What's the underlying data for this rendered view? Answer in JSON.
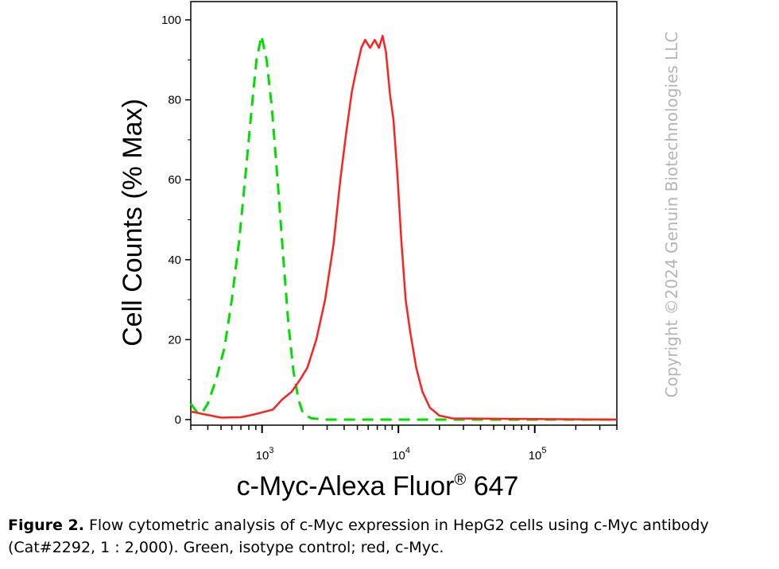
{
  "chart_data": {
    "type": "area",
    "x_scale": "log",
    "xlim": [
      300,
      400000
    ],
    "ylim": [
      0,
      100
    ],
    "y_ticks": [
      0,
      20,
      40,
      60,
      80,
      100
    ],
    "x_ticks": [
      {
        "base": "10",
        "exp": "3",
        "value": 1000
      },
      {
        "base": "10",
        "exp": "4",
        "value": 10000
      },
      {
        "base": "10",
        "exp": "5",
        "value": 100000
      }
    ],
    "ylabel": "Cell Counts (% Max)",
    "xlabel": "c-Myc-Alexa Fluor",
    "xlabel_sup": "®",
    "xlabel_tail": " 647",
    "grid": false,
    "series": [
      {
        "color": "#00dd00",
        "style": "dashed",
        "points": [
          [
            300,
            4
          ],
          [
            330,
            2
          ],
          [
            360,
            1.5
          ],
          [
            400,
            4
          ],
          [
            460,
            10
          ],
          [
            530,
            18
          ],
          [
            600,
            30
          ],
          [
            680,
            45
          ],
          [
            760,
            62
          ],
          [
            840,
            78
          ],
          [
            910,
            90
          ],
          [
            990,
            96
          ],
          [
            1080,
            90
          ],
          [
            1180,
            78
          ],
          [
            1300,
            60
          ],
          [
            1420,
            42
          ],
          [
            1560,
            24
          ],
          [
            1700,
            12
          ],
          [
            1850,
            5
          ],
          [
            2000,
            1.5
          ],
          [
            2300,
            0.3
          ],
          [
            3000,
            0
          ],
          [
            400000,
            0
          ]
        ]
      },
      {
        "color": "#ff2020",
        "style": "solid",
        "points": [
          [
            300,
            2
          ],
          [
            500,
            0.5
          ],
          [
            700,
            0.6
          ],
          [
            850,
            1.2
          ],
          [
            1000,
            1.8
          ],
          [
            1200,
            2.5
          ],
          [
            1400,
            5
          ],
          [
            1650,
            7
          ],
          [
            1900,
            10
          ],
          [
            2150,
            13
          ],
          [
            2500,
            20
          ],
          [
            2900,
            30
          ],
          [
            3350,
            44
          ],
          [
            3750,
            60
          ],
          [
            4150,
            72
          ],
          [
            4550,
            82
          ],
          [
            4950,
            88
          ],
          [
            5350,
            93
          ],
          [
            5700,
            95
          ],
          [
            6200,
            93
          ],
          [
            6700,
            95
          ],
          [
            7200,
            93
          ],
          [
            7650,
            96
          ],
          [
            8100,
            92
          ],
          [
            8700,
            81
          ],
          [
            9200,
            75
          ],
          [
            9800,
            62
          ],
          [
            10500,
            45
          ],
          [
            11300,
            30
          ],
          [
            12200,
            22
          ],
          [
            13500,
            13
          ],
          [
            15000,
            7
          ],
          [
            17000,
            3
          ],
          [
            20000,
            1
          ],
          [
            25000,
            0.3
          ],
          [
            400000,
            0
          ]
        ]
      }
    ]
  },
  "watermark": "Copyright ©2024 Genuin Biotechnologies LLC",
  "caption": {
    "lead": "Figure 2.",
    "text": " Flow cytometric analysis of c-Myc expression in HepG2 cells using c-Myc antibody (Cat#2292, 1 :   2,000). Green, isotype control; red, c-Myc."
  }
}
